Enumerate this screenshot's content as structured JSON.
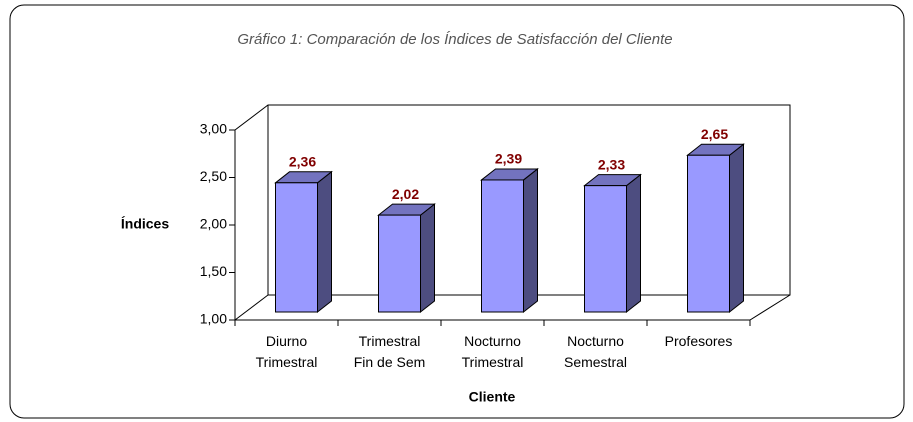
{
  "chart_data": {
    "type": "bar",
    "title": "Gráfico 1: Comparación de los Índices de Satisfacción del Cliente",
    "x_label": "Cliente",
    "y_label": "Índices",
    "categories": [
      "Diurno\nTrimestral",
      "Trimestral\nFin de Sem",
      "Nocturno\nTrimestral",
      "Nocturno\nSemestral",
      "Profesores"
    ],
    "values": [
      2.36,
      2.02,
      2.39,
      2.33,
      2.65
    ],
    "value_labels": [
      "2,36",
      "2,02",
      "2,39",
      "2,33",
      "2,65"
    ],
    "color": "#9999ff",
    "ylim": [
      1,
      3
    ],
    "yticks": [
      {
        "value": 1,
        "label": "1,00"
      },
      {
        "value": 1.5,
        "label": "1,50"
      },
      {
        "value": 2,
        "label": "2,00"
      },
      {
        "value": 2.5,
        "label": "2,50"
      },
      {
        "value": 3,
        "label": "3,00"
      }
    ]
  }
}
